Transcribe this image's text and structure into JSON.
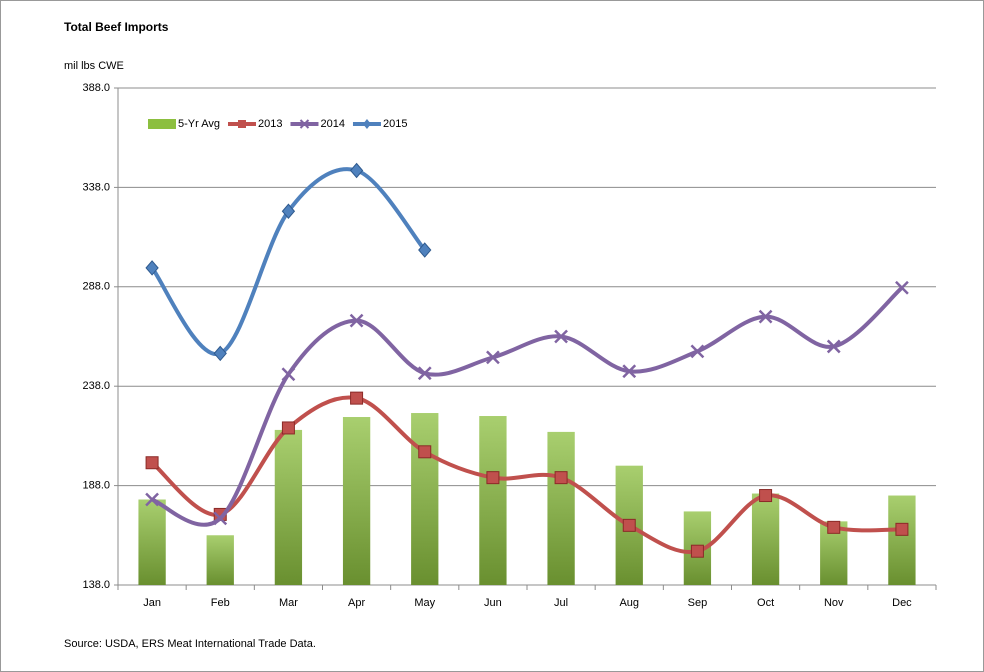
{
  "chart_data": {
    "type": "bar-line",
    "title": "Total Beef Imports",
    "y_label": "mil lbs CWE",
    "source": "Source: USDA, ERS Meat International Trade Data.",
    "categories": [
      "Jan",
      "Feb",
      "Mar",
      "Apr",
      "May",
      "Jun",
      "Jul",
      "Aug",
      "Sep",
      "Oct",
      "Nov",
      "Dec"
    ],
    "series": [
      {
        "name": "5-Yr Avg",
        "type": "bar",
        "color": "#8cbf3f",
        "values": [
          181,
          163,
          216,
          222.5,
          224.5,
          223,
          215,
          198,
          175,
          184,
          170,
          183
        ]
      },
      {
        "name": "2013",
        "type": "line",
        "marker": "square",
        "color": "#c0504d",
        "values": [
          199.5,
          173.5,
          217,
          232,
          205,
          192,
          192,
          168,
          155,
          183,
          167,
          166
        ]
      },
      {
        "name": "2014",
        "type": "line",
        "marker": "x",
        "color": "#8064a2",
        "values": [
          181,
          171.5,
          244,
          271,
          244.5,
          252.5,
          263,
          245.5,
          255.5,
          273,
          258,
          287.5
        ]
      },
      {
        "name": "2015",
        "type": "line",
        "marker": "diamond",
        "color": "#4f81bd",
        "values": [
          297.5,
          254.5,
          326,
          346.5,
          306.5,
          null,
          null,
          null,
          null,
          null,
          null,
          null
        ]
      }
    ],
    "ylim": [
      138,
      388
    ],
    "yticks": [
      {
        "value": 138,
        "label": "138.0"
      },
      {
        "value": 188,
        "label": "188.0"
      },
      {
        "value": 238,
        "label": "238.0"
      },
      {
        "value": 288,
        "label": "288.0"
      },
      {
        "value": 338,
        "label": "338.0"
      },
      {
        "value": 388,
        "label": "388.0"
      }
    ],
    "grid": true,
    "legend": "top-left"
  }
}
